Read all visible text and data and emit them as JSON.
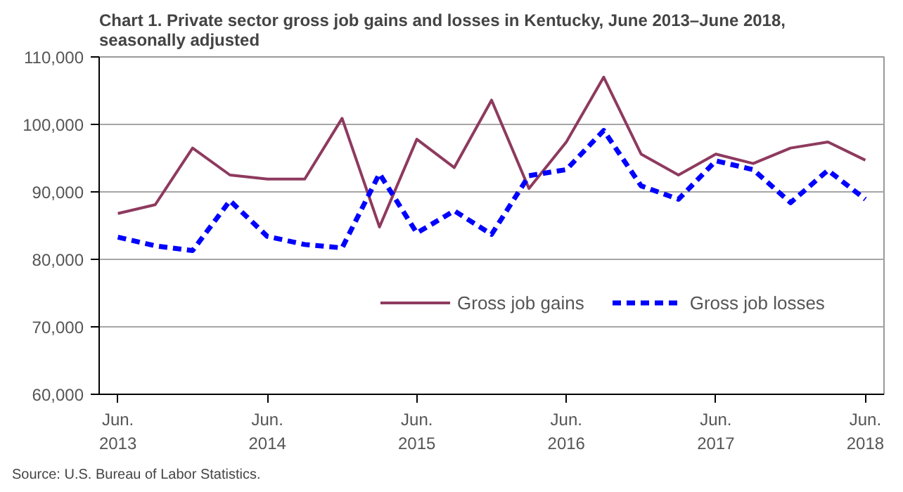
{
  "chart_data": {
    "type": "line",
    "title": "Chart 1. Private sector gross  job gains and losses  in Kentucky, June 2013–June 2018, seasonally adjusted",
    "categories": [
      "Jun.\n2013",
      null,
      null,
      null,
      "Jun.\n2014",
      null,
      null,
      null,
      "Jun.\n2015",
      null,
      null,
      null,
      "Jun.\n2016",
      null,
      null,
      null,
      "Jun.\n2017",
      null,
      null,
      null,
      "Jun.\n2018"
    ],
    "series": [
      {
        "name": "Gross job gains",
        "color": "#8e3a5f",
        "line_style": "solid",
        "values": [
          86800,
          88100,
          96500,
          92500,
          91900,
          91900,
          100900,
          84800,
          97800,
          93600,
          103600,
          90500,
          97400,
          107000,
          95600,
          92500,
          95600,
          94200,
          96500,
          97400,
          94700
        ]
      },
      {
        "name": "Gross job losses",
        "color": "#0000ff",
        "line_style": "dashed",
        "values": [
          83300,
          82000,
          81300,
          88700,
          83400,
          82200,
          81700,
          92700,
          83900,
          87200,
          83700,
          92400,
          93300,
          99100,
          90900,
          88900,
          94600,
          93300,
          88400,
          93200,
          88900
        ]
      }
    ],
    "ylim": [
      60000,
      110000
    ],
    "yticks": [
      {
        "value": 60000,
        "label": "60,000"
      },
      {
        "value": 70000,
        "label": "70,000"
      },
      {
        "value": 80000,
        "label": "80,000"
      },
      {
        "value": 90000,
        "label": "90,000"
      },
      {
        "value": 100000,
        "label": "100,000"
      },
      {
        "value": 110000,
        "label": "110,000"
      }
    ],
    "grid": "y",
    "legend": "bottom",
    "marker": "none",
    "annotations": [
      "Source: U.S. Bureau of Labor Statistics."
    ]
  }
}
